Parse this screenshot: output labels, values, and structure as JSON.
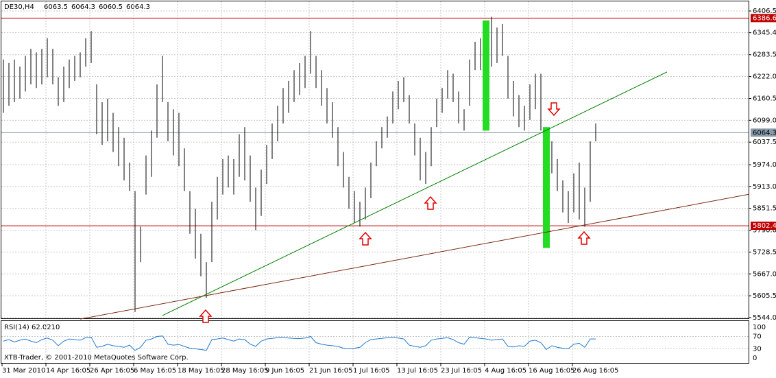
{
  "chart_data": {
    "type": "ohlc",
    "symbol": "DE30,H4",
    "ohlc": [
      6063.5,
      6064.3,
      6060.5,
      6064.3
    ],
    "footer": "XTB-Trader, © 2001-2010 MetaQuotes Software Corp.",
    "ylim": [
      5544.0,
      6406.5
    ],
    "yticks": [
      {
        "value": 6406.5,
        "label": "6406.5"
      },
      6345.4,
      6283.5,
      {
        "value": 6222.0,
        "label": "6222.0"
      },
      6160.5,
      {
        "value": 6099.0,
        "label": "6099.0"
      },
      6037.5,
      {
        "value": 5974.0,
        "label": "5974.0"
      },
      {
        "value": 5913.0,
        "label": "5913.0"
      },
      5851.5,
      {
        "value": 5790.0,
        "label": "5790.0"
      },
      5728.5,
      {
        "value": 5667.0,
        "label": "5667.0"
      },
      5605.5,
      {
        "value": 5544.0,
        "label": "5544.0"
      }
    ],
    "grid": true,
    "bar_color": "#000000",
    "highlight_color": "#22dd22",
    "highlighted": [
      88,
      99
    ],
    "categories": [
      "31 Mar 2010",
      null,
      null,
      null,
      null,
      null,
      null,
      null,
      "14 Apr 16:05",
      null,
      null,
      null,
      null,
      null,
      null,
      null,
      "26 Apr 16:05",
      null,
      null,
      null,
      null,
      null,
      null,
      null,
      "6 May 16:05",
      null,
      null,
      null,
      null,
      null,
      null,
      null,
      "18 May 16:05",
      null,
      null,
      null,
      null,
      null,
      null,
      null,
      "28 May 16:05",
      null,
      null,
      null,
      null,
      null,
      null,
      null,
      "9 Jun 16:05",
      null,
      null,
      null,
      null,
      null,
      null,
      null,
      "21 Jun 16:05",
      null,
      null,
      null,
      null,
      null,
      null,
      null,
      "1 Jul 16:05",
      null,
      null,
      null,
      null,
      null,
      null,
      null,
      "13 Jul 16:05",
      null,
      null,
      null,
      null,
      null,
      null,
      null,
      "23 Jul 16:05",
      null,
      null,
      null,
      null,
      null,
      null,
      null,
      "4 Aug 16:05",
      null,
      null,
      null,
      null,
      null,
      null,
      null,
      "16 Aug 16:05",
      null,
      null,
      null,
      null,
      null,
      null,
      null,
      "26 Aug 16:05",
      null,
      null,
      null,
      null
    ],
    "high": [
      6270,
      6260,
      6270,
      6250,
      6280,
      6300,
      6290,
      6300,
      6330,
      6300,
      6220,
      6250,
      6270,
      6280,
      6290,
      6330,
      6350,
      6200,
      6150,
      6160,
      6120,
      6080,
      6050,
      5980,
      5900,
      5800,
      6000,
      6070,
      6200,
      6280,
      6150,
      6130,
      6120,
      6020,
      5900,
      5850,
      5780,
      5700,
      5870,
      5940,
      5990,
      6000,
      5990,
      6060,
      6080,
      6000,
      5910,
      5960,
      6030,
      6090,
      6140,
      6190,
      6210,
      6240,
      6260,
      6280,
      6350,
      6280,
      6240,
      6190,
      6150,
      6080,
      6010,
      5940,
      5900,
      5870,
      5910,
      5980,
      6040,
      6080,
      6110,
      6180,
      6210,
      6220,
      6170,
      6090,
      6050,
      6010,
      6080,
      6160,
      6190,
      6240,
      6230,
      6180,
      6130,
      6270,
      6320,
      6330,
      6380,
      6390,
      6360,
      6370,
      6280,
      6210,
      6170,
      6140,
      6200,
      6230,
      6230,
      6080,
      6040,
      5990,
      5930,
      5900,
      5950,
      5980,
      5910,
      6040,
      6090
    ],
    "low": [
      6120,
      6140,
      6150,
      6160,
      6180,
      6200,
      6190,
      6200,
      6220,
      6200,
      6140,
      6150,
      6190,
      6210,
      6220,
      6250,
      6260,
      6060,
      6030,
      6040,
      6010,
      5970,
      5930,
      5900,
      5560,
      5700,
      5890,
      5940,
      6050,
      6150,
      6040,
      6000,
      5970,
      5900,
      5780,
      5710,
      5660,
      5600,
      5700,
      5820,
      5890,
      5910,
      5890,
      5940,
      5930,
      5870,
      5790,
      5830,
      5920,
      5990,
      6040,
      6090,
      6120,
      6150,
      6170,
      6190,
      6230,
      6190,
      6140,
      6090,
      6050,
      5970,
      5910,
      5850,
      5810,
      5800,
      5820,
      5880,
      5970,
      6020,
      6050,
      6090,
      6130,
      6150,
      6090,
      6000,
      5930,
      5920,
      5970,
      6080,
      6120,
      6160,
      6150,
      6090,
      6070,
      6140,
      6240,
      6240,
      6070,
      6250,
      6260,
      6280,
      6160,
      6110,
      6080,
      6070,
      6100,
      6130,
      6070,
      5740,
      5950,
      5900,
      5840,
      5810,
      5840,
      5820,
      5800,
      5870,
      6040
    ],
    "hlines": [
      {
        "value": 6386.6,
        "color": "#c00000",
        "label_color": "#ffffff"
      },
      {
        "value": 5802.4,
        "color": "#c00000",
        "label_color": "#ffffff"
      },
      {
        "value": 6064.3,
        "color": "#8899aa",
        "label_color": "#000000"
      }
    ],
    "trendlines": [
      {
        "color": "#008000",
        "points": [
          [
            29,
            5550
          ],
          [
            121,
            6235
          ]
        ]
      },
      {
        "color": "#7a2a10",
        "points": [
          [
            14,
            5540
          ],
          [
            136,
            5891
          ]
        ]
      }
    ],
    "rsi": {
      "title": "RSI(14) 62.0210",
      "color": "#1e78d0",
      "ylim": [
        0,
        100
      ],
      "yticks": [
        100,
        70,
        30,
        0
      ],
      "values": [
        55,
        60,
        52,
        58,
        62,
        55,
        50,
        60,
        65,
        58,
        40,
        55,
        62,
        60,
        58,
        66,
        68,
        35,
        38,
        45,
        40,
        38,
        35,
        42,
        25,
        35,
        58,
        62,
        70,
        72,
        45,
        42,
        44,
        38,
        32,
        30,
        28,
        25,
        60,
        62,
        65,
        60,
        55,
        62,
        60,
        45,
        38,
        55,
        62,
        64,
        66,
        68,
        65,
        64,
        63,
        65,
        70,
        50,
        45,
        42,
        40,
        38,
        32,
        30,
        32,
        35,
        50,
        60,
        62,
        64,
        66,
        68,
        65,
        62,
        42,
        38,
        35,
        40,
        58,
        62,
        64,
        66,
        60,
        50,
        45,
        68,
        66,
        64,
        62,
        58,
        60,
        62,
        38,
        36,
        40,
        38,
        55,
        58,
        50,
        28,
        40,
        35,
        32,
        30,
        45,
        48,
        35,
        62,
        62
      ]
    }
  }
}
